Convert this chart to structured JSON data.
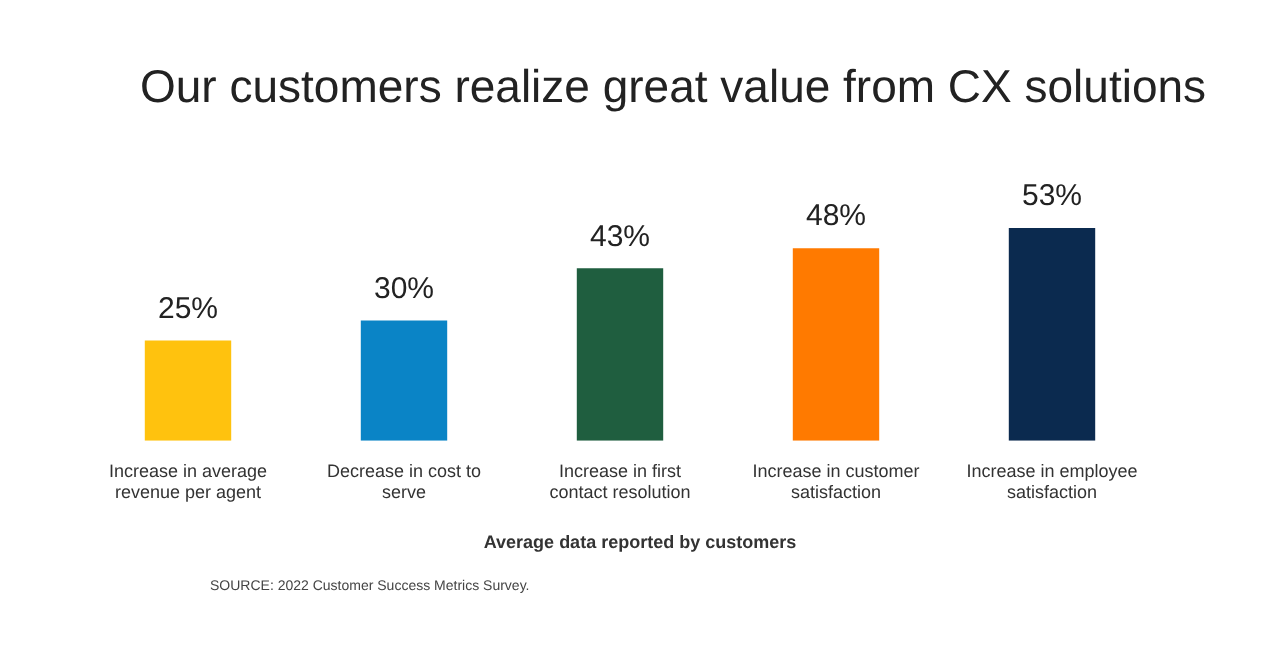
{
  "chart_data": {
    "type": "bar",
    "title": "Our customers realize great value from CX solutions",
    "categories": [
      "Increase in average revenue per agent",
      "Decrease in cost to serve",
      "Increase in first contact resolution",
      "Increase in customer satisfaction",
      "Increase in employee satisfaction"
    ],
    "values": [
      25,
      30,
      43,
      48,
      53
    ],
    "colors": [
      "#ffc20e",
      "#0a84c6",
      "#1f5e3f",
      "#ff7a00",
      "#0b2a4f"
    ],
    "value_labels": [
      "25%",
      "30%",
      "43%",
      "48%",
      "53%"
    ],
    "grid": false,
    "legend": false,
    "tick_labels": "x",
    "annotations": [
      "Average data reported by customers",
      "SOURCE: 2022 Customer Success Metrics Survey."
    ]
  }
}
